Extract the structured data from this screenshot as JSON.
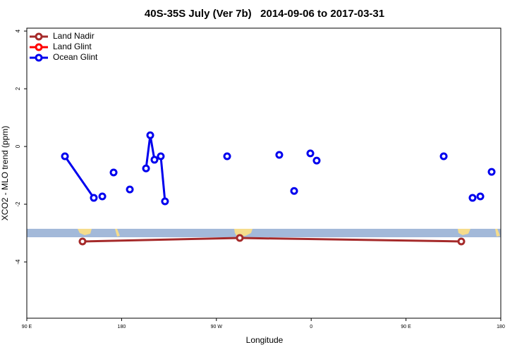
{
  "chart_data": {
    "type": "scatter",
    "title": "40S-35S July (Ver 7b)   2014-09-06 to 2017-03-31",
    "x_label": "Longitude",
    "y_label": "XCO2 - MLO trend (ppm)",
    "xlim": [
      90,
      540
    ],
    "ylim": [
      -5.95,
      4.1
    ],
    "xticks": [
      {
        "value": 90,
        "label": "90 E"
      },
      {
        "value": 180,
        "label": "180"
      },
      {
        "value": 270,
        "label": "90 W"
      },
      {
        "value": 360,
        "label": "0"
      },
      {
        "value": 450,
        "label": "90 E"
      },
      {
        "value": 540,
        "label": "180"
      }
    ],
    "yticks": [
      4,
      2,
      0,
      -2,
      -4
    ],
    "legend": "top-left",
    "series": [
      {
        "name": "Land Nadir",
        "color": "#a52a2a",
        "x": [
          142.9,
          292.2,
          502.5
        ],
        "values": [
          -3.29,
          -3.17,
          -3.29
        ]
      },
      {
        "name": "Land Glint",
        "color": "#ff0000",
        "x": [],
        "values": []
      },
      {
        "name": "Ocean Glint",
        "color": "#0000ee",
        "x": [
          126.2,
          153.6,
          null,
          161.7,
          null,
          172.4,
          null,
          187.8,
          null,
          203.2,
          207.2,
          211.2,
          null,
          217.2,
          221.2,
          null,
          280.2,
          null,
          329.7,
          null,
          343.8,
          null,
          359.2,
          null,
          365.2,
          null,
          485.8,
          null,
          513.2,
          null,
          520.6,
          null,
          531.3
        ],
        "values": [
          -0.34,
          -1.78,
          null,
          -1.73,
          null,
          -0.9,
          null,
          -1.49,
          null,
          -0.76,
          0.39,
          -0.46,
          null,
          -0.34,
          -1.9,
          null,
          -0.34,
          null,
          -0.29,
          null,
          -1.54,
          null,
          -0.24,
          null,
          -0.49,
          null,
          -0.34,
          null,
          -1.78,
          null,
          -1.73,
          null,
          -0.88
        ]
      }
    ]
  }
}
